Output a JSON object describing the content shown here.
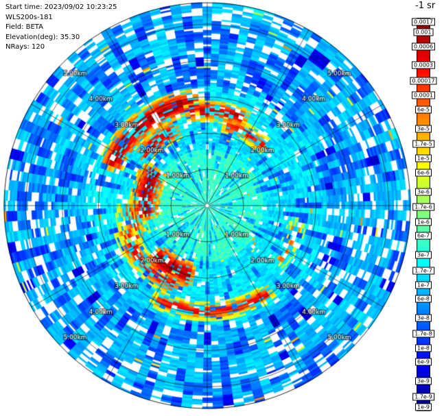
{
  "info": {
    "lines": [
      "Start time: 2023/09/02 10:23:25",
      "WLS200s-181",
      "Field: BETA",
      "Elevation(deg): 35.30",
      "NRays: 120"
    ]
  },
  "colorbar": {
    "title": "-1 sr",
    "tick_labels": [
      "0.0017",
      "0.001",
      "0.0006",
      "0.0003",
      "0.00017",
      "0.0001",
      "6e-5",
      "3e-5",
      "1.7e-5",
      "1e-5",
      "6e-6",
      "3e-6",
      "1.7e-6",
      "1e-6",
      "6e-7",
      "3e-7",
      "1.7e-7",
      "1e-7",
      "6e-8",
      "3e-8",
      "1.7e-8",
      "1e-8",
      "6e-9",
      "3e-9",
      "1.7e-9",
      "1e-9"
    ]
  },
  "chart_data": {
    "type": "heatmap",
    "projection": "polar",
    "title": "",
    "instrument": "WLS200s-181",
    "field": "BETA",
    "start_time": "2023/09/02 10:23:25",
    "elevation_deg": 35.3,
    "n_rays": 120,
    "gate_length_km": 0.05,
    "max_range_km": 5.6,
    "range_rings_km": [
      1,
      2,
      3,
      4,
      5
    ],
    "ring_labels": [
      "1.00km",
      "2.00km",
      "3.00km",
      "4.00km",
      "5.00km"
    ],
    "ring_label_azimuths_deg": [
      45,
      135,
      225,
      315
    ],
    "azimuth_spoke_step_deg": 30,
    "north_up": true,
    "value_scale": {
      "min": 1e-09,
      "max": 0.0017,
      "scale": "log",
      "colormap": "jet",
      "units": "-1 sr"
    },
    "background_profile": [
      {
        "range_km": [
          0,
          1.55
        ],
        "typical_beta": 4e-07,
        "appearance": "pale aqua-green inner disc"
      },
      {
        "range_km": [
          1.55,
          3.3
        ],
        "typical_beta": 1.5e-07,
        "appearance": "cyan"
      },
      {
        "range_km": [
          3.3,
          5.6
        ],
        "typical_beta": 9e-08,
        "appearance": "cyan-blue with blue patches and white gaps"
      }
    ],
    "features": [
      {
        "azimuth_deg": [
          296,
          352
        ],
        "range_km": 2.85,
        "width_km": 0.28,
        "beta": 0.0008,
        "patchiness": 0.75,
        "note": "red arc NNW"
      },
      {
        "azimuth_deg": [
          310,
          336
        ],
        "range_km": 2.25,
        "width_km": 0.22,
        "beta": 0.0005,
        "patchiness": 0.5,
        "note": "red patches NW"
      },
      {
        "azimuth_deg": [
          352,
          380
        ],
        "range_km": 2.6,
        "width_km": 0.22,
        "beta": 0.0005,
        "patchiness": 0.65,
        "note": "red-orange arc N"
      },
      {
        "azimuth_deg": [
          15,
          42
        ],
        "range_km": 2.25,
        "width_km": 0.2,
        "beta": 0.0002,
        "patchiness": 0.6,
        "note": "orange arc NNE"
      },
      {
        "azimuth_deg": [
          262,
          302
        ],
        "range_km": 1.7,
        "width_km": 0.3,
        "beta": 0.0009,
        "patchiness": 0.7,
        "note": "red streaks W"
      },
      {
        "azimuth_deg": [
          246,
          268
        ],
        "range_km": 2.1,
        "width_km": 0.3,
        "beta": 0.00015,
        "patchiness": 0.45,
        "note": "orange WSW"
      },
      {
        "azimuth_deg": [
          196,
          224
        ],
        "range_km": 1.95,
        "width_km": 0.28,
        "beta": 0.001,
        "patchiness": 0.8,
        "note": "red blob SSW"
      },
      {
        "azimuth_deg": [
          204,
          250
        ],
        "range_km": 2.35,
        "width_km": 0.24,
        "beta": 0.0003,
        "patchiness": 0.6,
        "note": "orange arc SW"
      },
      {
        "azimuth_deg": [
          147,
          206
        ],
        "range_km": 2.9,
        "width_km": 0.2,
        "beta": 0.00025,
        "patchiness": 0.65,
        "note": "orange arc S"
      },
      {
        "azimuth_deg": [
          104,
          126
        ],
        "range_km": 2.5,
        "width_km": 0.22,
        "beta": 8e-05,
        "patchiness": 0.35,
        "note": "sparse orange ESE"
      }
    ],
    "missing_data": "white radial dashes scattered over the disc, density increasing with range"
  }
}
